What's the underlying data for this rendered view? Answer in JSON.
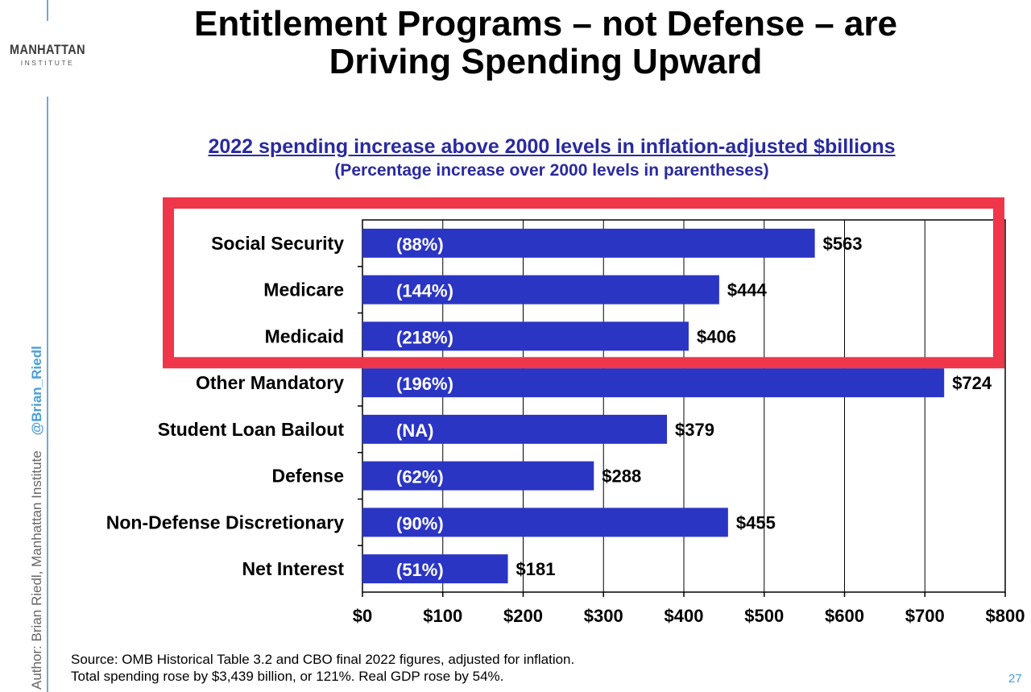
{
  "slide": {
    "title_line1": "Entitlement Programs – not Defense – are",
    "title_line2": "Driving Spending Upward",
    "logo_main": "MANHATTAN",
    "logo_sub": "INSTITUTE",
    "author_credit": "Author: Brian Riedl, Manhattan Institute",
    "handle": "@Brian_Riedl",
    "source_line1": "Source: OMB Historical Table 3.2 and CBO final 2022 figures, adjusted for inflation.",
    "source_line2": "Total spending rose by $3,439 billion, or 121%. Real GDP rose by 54%.",
    "page_number": "27"
  },
  "colors": {
    "bar": "#2b35c4",
    "highlight_box": "#f0364a",
    "subtitle": "#2a2aa0",
    "accent_line": "#6fa8d6",
    "handle": "#4a9fd8"
  },
  "chart_data": {
    "type": "bar",
    "orientation": "horizontal",
    "title": "2022 spending increase above 2000 levels in inflation-adjusted $billions",
    "subtitle": "(Percentage increase over 2000 levels in parentheses)",
    "categories": [
      "Social Security",
      "Medicare",
      "Medicaid",
      "Other Mandatory",
      "Student Loan Bailout",
      "Defense",
      "Non-Defense Discretionary",
      "Net Interest"
    ],
    "values": [
      563,
      444,
      406,
      724,
      379,
      288,
      455,
      181
    ],
    "value_labels": [
      "$563",
      "$444",
      "$406",
      "$724",
      "$379",
      "$288",
      "$455",
      "$181"
    ],
    "percent_labels": [
      "(88%)",
      "(144%)",
      "(218%)",
      "(196%)",
      "(NA)",
      "(62%)",
      "(90%)",
      "(51%)"
    ],
    "xlim": [
      0,
      800
    ],
    "xticks": [
      0,
      100,
      200,
      300,
      400,
      500,
      600,
      700,
      800
    ],
    "xtick_labels": [
      "$0",
      "$100",
      "$200",
      "$300",
      "$400",
      "$500",
      "$600",
      "$700",
      "$800"
    ],
    "grid": "vertical",
    "highlighted_categories": [
      "Social Security",
      "Medicare",
      "Medicaid"
    ]
  }
}
